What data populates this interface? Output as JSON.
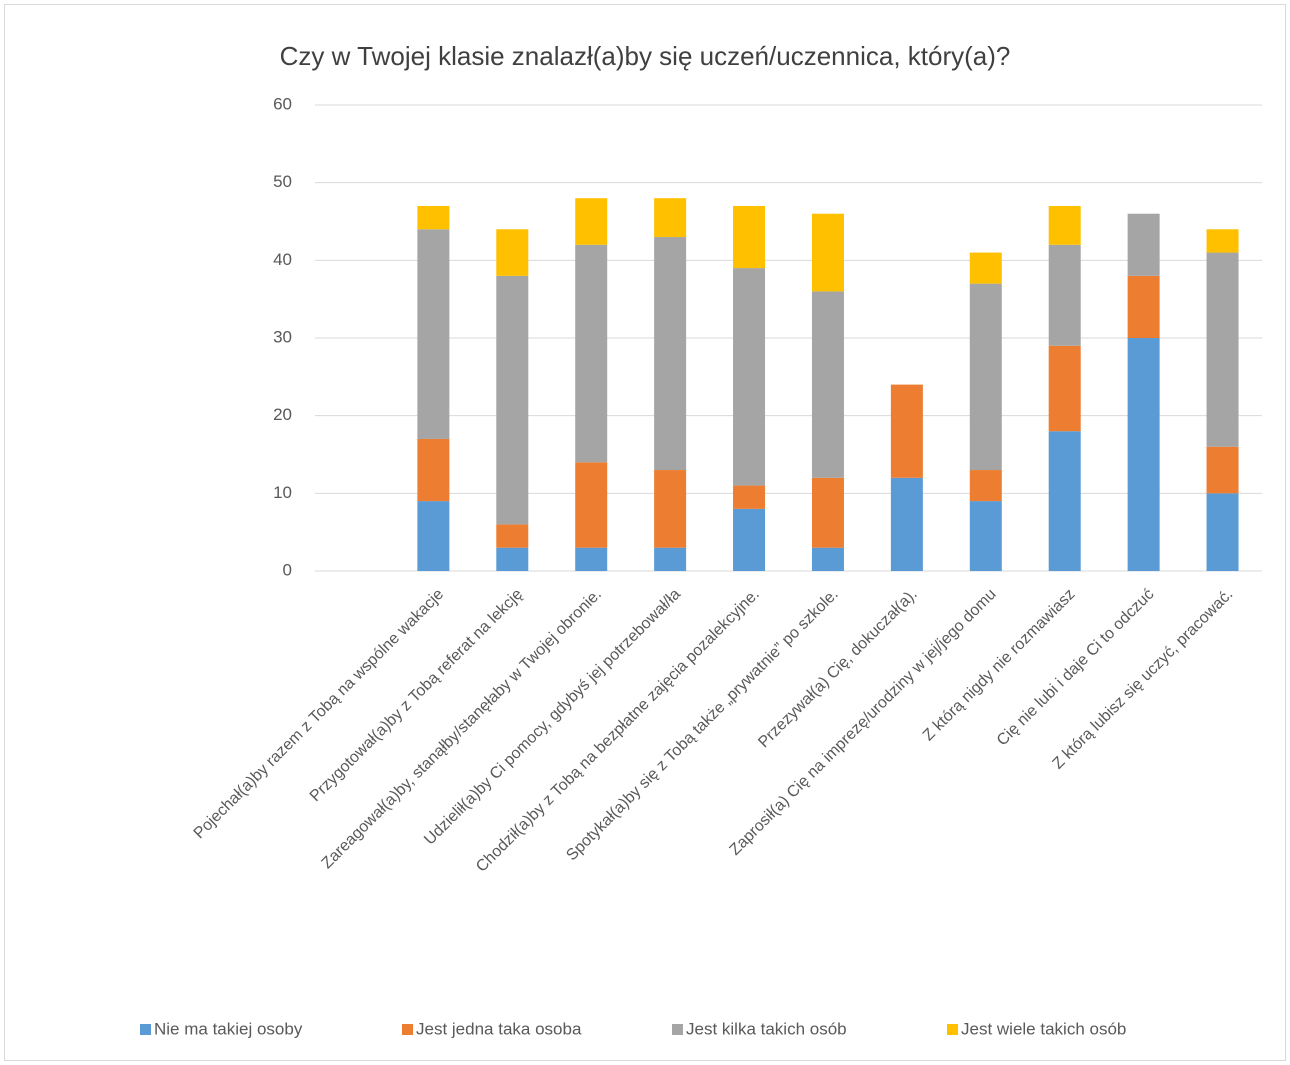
{
  "chart_data": {
    "type": "stacked_bar",
    "title": "Czy w Twojej klasie znalazł(a)by się uczeń/uczennica, który(a)?",
    "categories": [
      null,
      "Pojechał(a)by razem z Tobą na wspólne wakacje",
      "Przygotował(a)by z Tobą referat na lekcję",
      "Zareagował(a)by, stanąłby/stanęłaby w Twojej obronie.",
      "Udzielił(a)by Ci pomocy, gdybyś jej potrzebował/ła",
      "Chodził(a)by z Tobą na bezpłatne zajęcia pozalekcyjne.",
      "Spotykał(a)by się z Tobą także „prywatnie” po szkole.",
      "Przezywał(a) Cię, dokuczał(a).",
      "Zaprosił(a) Cię na imprezę/urodziny w jej/jego domu",
      "Z którą nigdy nie rozmawiasz",
      "Cię nie lubi i daje Ci to odczuć",
      "Z którą lubisz się uczyć, pracować."
    ],
    "series": [
      {
        "name": "Nie ma takiej osoby",
        "color": "#5b9bd5",
        "values": [
          null,
          9,
          3,
          3,
          3,
          8,
          3,
          12,
          9,
          18,
          30,
          10
        ]
      },
      {
        "name": "Jest jedna taka osoba",
        "color": "#ed7d31",
        "values": [
          null,
          8,
          3,
          11,
          10,
          3,
          9,
          12,
          4,
          11,
          8,
          6
        ]
      },
      {
        "name": "Jest kilka takich osób",
        "color": "#a5a5a5",
        "values": [
          null,
          27,
          32,
          28,
          30,
          28,
          24,
          0,
          24,
          13,
          8,
          25
        ]
      },
      {
        "name": "Jest wiele takich osób",
        "color": "#ffc000",
        "values": [
          null,
          3,
          6,
          6,
          5,
          8,
          10,
          0,
          4,
          5,
          0,
          3
        ]
      }
    ],
    "ylim": [
      0,
      60
    ],
    "yticks": [
      0,
      10,
      20,
      30,
      40,
      50,
      60
    ],
    "grid": true,
    "legend": "bottom"
  }
}
